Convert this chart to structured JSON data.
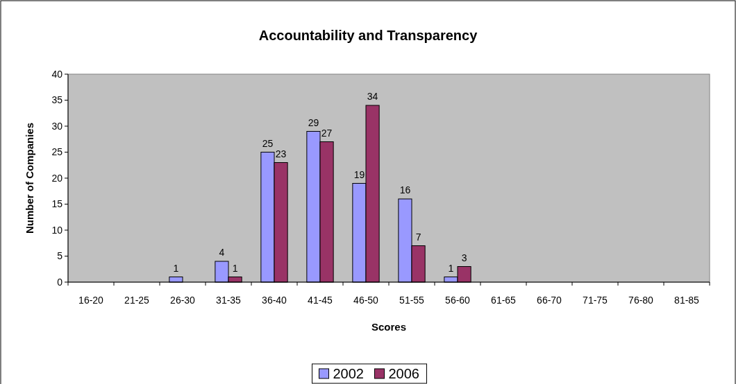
{
  "chart_data": {
    "type": "bar",
    "title": "Accountability and Transparency",
    "xlabel": "Scores",
    "ylabel": "Number of Companies",
    "categories": [
      "16-20",
      "21-25",
      "26-30",
      "31-35",
      "36-40",
      "41-45",
      "46-50",
      "51-55",
      "56-60",
      "61-65",
      "66-70",
      "71-75",
      "76-80",
      "81-85"
    ],
    "series": [
      {
        "name": "2002",
        "color": "#9999ff",
        "values": [
          0,
          0,
          1,
          4,
          25,
          29,
          19,
          16,
          1,
          0,
          0,
          0,
          0,
          0
        ],
        "value_labels": [
          null,
          null,
          "1",
          "4",
          "25",
          "29",
          "19",
          "16",
          "1",
          null,
          null,
          null,
          null,
          null
        ]
      },
      {
        "name": "2006",
        "color": "#993366",
        "values": [
          0,
          0,
          0,
          1,
          23,
          27,
          34,
          7,
          3,
          0,
          0,
          0,
          0,
          0
        ],
        "value_labels": [
          null,
          null,
          null,
          "1",
          "23",
          "27",
          "34",
          "7",
          "3",
          null,
          null,
          null,
          null,
          null
        ]
      }
    ],
    "ylim": [
      0,
      40
    ],
    "yticks": [
      0,
      5,
      10,
      15,
      20,
      25,
      30,
      35,
      40
    ],
    "grid": false,
    "legend": "bottom"
  }
}
